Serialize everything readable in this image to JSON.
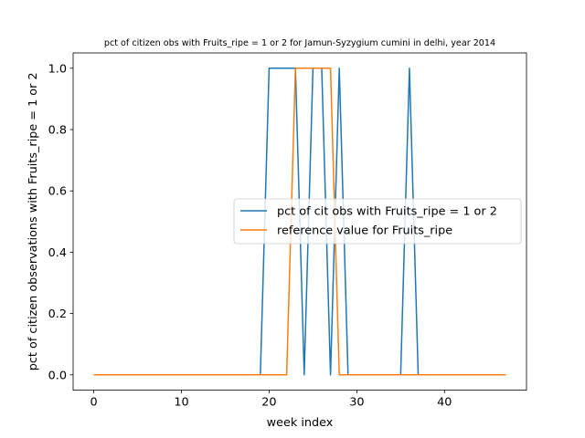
{
  "chart_data": {
    "type": "line",
    "title": "pct of citizen obs with Fruits_ripe = 1 or 2 for Jamun-Syzygium cumini in delhi, year 2014",
    "xlabel": "week index",
    "ylabel": "pct of citizen observations with Fruits_ripe = 1 or 2",
    "xlim": [
      -2.35,
      49.35
    ],
    "ylim": [
      -0.05,
      1.05
    ],
    "xticks": [
      0,
      10,
      20,
      30,
      40
    ],
    "yticks": [
      0.0,
      0.2,
      0.4,
      0.6,
      0.8,
      1.0
    ],
    "xtick_labels": [
      "0",
      "10",
      "20",
      "30",
      "40"
    ],
    "ytick_labels": [
      "0.0",
      "0.2",
      "0.4",
      "0.6",
      "0.8",
      "1.0"
    ],
    "grid": false,
    "legend_position": "center-right",
    "x": [
      0,
      1,
      2,
      3,
      4,
      5,
      6,
      7,
      8,
      9,
      10,
      11,
      12,
      13,
      14,
      15,
      16,
      17,
      18,
      19,
      20,
      21,
      22,
      23,
      24,
      25,
      26,
      27,
      28,
      29,
      30,
      31,
      32,
      33,
      34,
      35,
      36,
      37,
      38,
      39,
      40,
      41,
      42,
      43,
      44,
      45,
      46,
      47
    ],
    "series": [
      {
        "name": "pct of cit obs with Fruits_ripe = 1 or 2",
        "color": "#1f77b4",
        "values": [
          0,
          0,
          0,
          0,
          0,
          0,
          0,
          0,
          0,
          0,
          0,
          0,
          0,
          0,
          0,
          0,
          0,
          0,
          0,
          0,
          1,
          1,
          1,
          1,
          0,
          1,
          1,
          0,
          1,
          0,
          0,
          0,
          0,
          0,
          0,
          0,
          1,
          0,
          0,
          0,
          0,
          0,
          0,
          0,
          0,
          0,
          0,
          0
        ]
      },
      {
        "name": "reference value for Fruits_ripe",
        "color": "#ff7f0e",
        "values": [
          0,
          0,
          0,
          0,
          0,
          0,
          0,
          0,
          0,
          0,
          0,
          0,
          0,
          0,
          0,
          0,
          0,
          0,
          0,
          0,
          0,
          0,
          0,
          1,
          1,
          1,
          1,
          1,
          0,
          0,
          0,
          0,
          0,
          0,
          0,
          0,
          0,
          0,
          0,
          0,
          0,
          0,
          0,
          0,
          0,
          0,
          0,
          0
        ]
      }
    ]
  }
}
